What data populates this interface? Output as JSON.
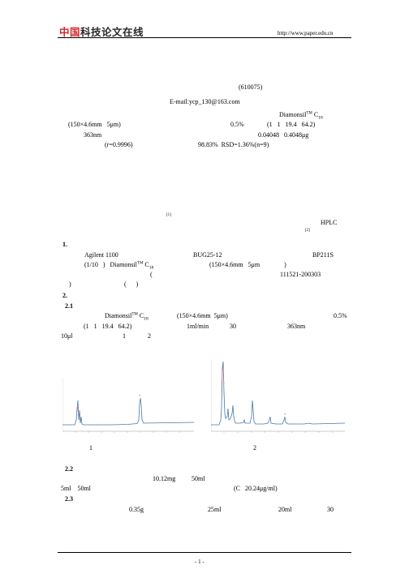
{
  "header": {
    "logo_zh_a": "中国",
    "logo_zh_b": "科技论文在线",
    "url": "http://www.paper.edu.cn"
  },
  "lines": {
    "zip": "(610075)",
    "email": "E-mail:ycp_130@163.com",
    "col_brand": "Diamonsil",
    "col_tm": "TM",
    "col_c": "C",
    "col_18": "18",
    "col_dim": "(150×4.6mm   5μm)",
    "pct": "0.5%",
    "ratio": "(1   1   19.4   64.2)",
    "wl": "363nm",
    "range": "0.04048   0.4048μg",
    "r": "(r=0.9996)",
    "recovery": "98.83%  RSD=1.36%(n=9)",
    "ref1": "[1]",
    "hplc": "HPLC",
    "ref2": "[2]",
    "s1": "1.",
    "agilent": "Agilent 1100",
    "bug": "BUG25-12",
    "bp": "BP211S",
    "tenth": "(1/10   )   Diamonsil",
    "tm2": "TM",
    "c2": "C",
    "c2sub": "18",
    "dim2": "(150×4.6mm   5μm               )",
    "paren_open": "(",
    "lot": "111521-200303",
    "close1": ")",
    "paren2": "(      )",
    "s2": "2.",
    "s21": "2.1",
    "brand3": "Diamonsil",
    "tm3": "TM",
    "c3": "C",
    "c3sub": "18",
    "dim3": "(150×4.6mm  5μm)",
    "pct3": "0.5%",
    "ratio3": "(1   1   19.4   64.2)",
    "flow": "1ml/min",
    "temp": "30",
    "wl3": "363nm",
    "inj": "10μl",
    "fig1ref": "1",
    "fig2ref": "2",
    "fig1_label": "1",
    "fig2_label": "2",
    "s22": "2.2",
    "mass": "10.12mg",
    "vol50": "50ml",
    "dil": "5ml    50ml",
    "conc": "(C   20.24μg/ml)",
    "s23": "2.3",
    "g035": "0.35g",
    "v25": "25ml",
    "v20": "20ml",
    "n30": "30"
  },
  "page_number": "- 1 -"
}
